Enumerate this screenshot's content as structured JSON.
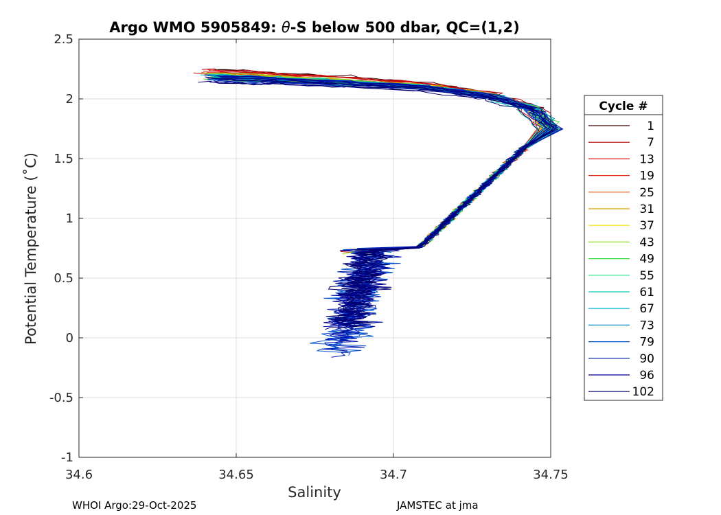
{
  "chart_data": {
    "type": "line",
    "title_prefix": "Argo WMO 5905849: ",
    "title_theta": "θ",
    "title_suffix": "-S below 500 dbar,  QC=(1,2)",
    "xlabel": "Salinity",
    "ylabel": "Potential Temperature (˚C)",
    "xlim": [
      34.6,
      34.75
    ],
    "ylim": [
      -1,
      2.5
    ],
    "xticks": [
      34.6,
      34.65,
      34.7,
      34.75
    ],
    "xtick_labels": [
      "34.6",
      "34.65",
      "34.7",
      "34.75"
    ],
    "yticks": [
      -1,
      -0.5,
      0,
      0.5,
      1,
      1.5,
      2,
      2.5
    ],
    "ytick_labels": [
      "-1",
      "-0.5",
      "0",
      "0.5",
      "1",
      "1.5",
      "2",
      "2.5"
    ],
    "grid": true,
    "legend_title": "Cycle #",
    "legend_position": "right-outside",
    "series": [
      {
        "name": "1",
        "color": "#3a0000"
      },
      {
        "name": "7",
        "color": "#b00000"
      },
      {
        "name": "13",
        "color": "#d81010"
      },
      {
        "name": "19",
        "color": "#e02a10"
      },
      {
        "name": "25",
        "color": "#e85a10"
      },
      {
        "name": "31",
        "color": "#d8a000"
      },
      {
        "name": "37",
        "color": "#f0e000"
      },
      {
        "name": "43",
        "color": "#90e020"
      },
      {
        "name": "49",
        "color": "#40e040"
      },
      {
        "name": "55",
        "color": "#20e080"
      },
      {
        "name": "61",
        "color": "#10d0b0"
      },
      {
        "name": "67",
        "color": "#00b8e0"
      },
      {
        "name": "73",
        "color": "#0088c0"
      },
      {
        "name": "79",
        "color": "#0050d0"
      },
      {
        "name": "90",
        "color": "#0018b0"
      },
      {
        "name": "96",
        "color": "#000090"
      },
      {
        "name": "102",
        "color": "#000070"
      }
    ]
  },
  "footer": {
    "left": "WHOI Argo:29-Oct-2025",
    "right": "JAMSTEC at jma"
  }
}
